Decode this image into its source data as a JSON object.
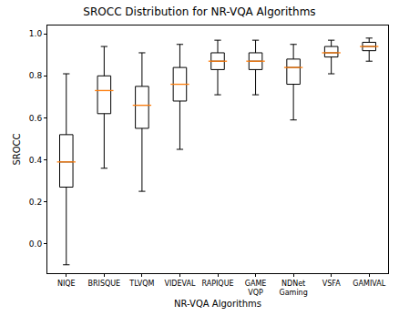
{
  "chart_data": {
    "type": "box",
    "title": "SROCC Distribution for NR-VQA Algorithms",
    "x_label": "NR-VQA Algorithms",
    "y_label": "SROCC",
    "categories": [
      "NIQE",
      "BRISQUE",
      "TLVQM",
      "VIDEVAL",
      "RAPIQUE",
      "GAME VQP",
      "NDNet Gaming",
      "VSFA",
      "GAMIVAL"
    ],
    "whisker_low": [
      -0.1,
      0.36,
      0.25,
      0.45,
      0.71,
      0.71,
      0.59,
      0.81,
      0.87
    ],
    "q1": [
      0.27,
      0.62,
      0.55,
      0.68,
      0.83,
      0.83,
      0.76,
      0.89,
      0.92
    ],
    "median": [
      0.39,
      0.73,
      0.66,
      0.76,
      0.87,
      0.87,
      0.84,
      0.91,
      0.94
    ],
    "q3": [
      0.52,
      0.8,
      0.75,
      0.84,
      0.91,
      0.91,
      0.88,
      0.94,
      0.96
    ],
    "whisker_high": [
      0.81,
      0.94,
      0.91,
      0.95,
      0.97,
      0.97,
      0.95,
      0.97,
      0.98
    ],
    "color": "#000000",
    "median_color": "#ff7f0e",
    "ylim": [
      -0.14,
      1.04
    ],
    "yticks": [
      {
        "value": 0.0,
        "label": "0.0"
      },
      0.2,
      0.4,
      0.6,
      0.8,
      {
        "value": 1.0,
        "label": "1.0"
      }
    ],
    "grid": false
  }
}
